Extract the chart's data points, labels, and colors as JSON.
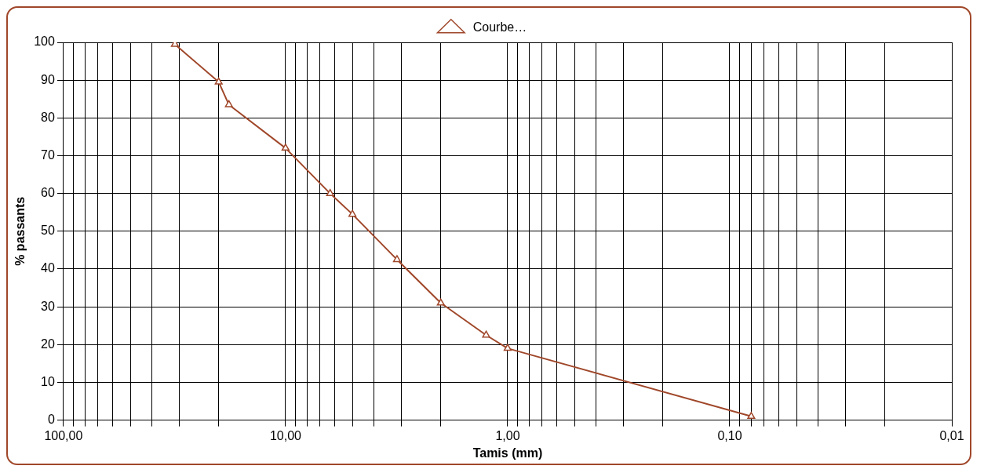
{
  "chart_data": {
    "type": "line",
    "xlabel": "Tamis (mm)",
    "ylabel": "% passants",
    "log": "x",
    "x": [
      31.5,
      20,
      18,
      10,
      6.3,
      5,
      3.15,
      2,
      1.25,
      1,
      0.08
    ],
    "series": [
      {
        "name": "Courbe…",
        "color": "#a0472a",
        "values": [
          99.5,
          89.5,
          83.5,
          72,
          60,
          54.5,
          42.5,
          31,
          22.5,
          19,
          1
        ]
      }
    ],
    "xlim": [
      100,
      0.01
    ],
    "xticks": [
      {
        "value": 100,
        "label": "100,00"
      },
      {
        "value": 90,
        "label": null
      },
      {
        "value": 80,
        "label": null
      },
      {
        "value": 70,
        "label": null
      },
      {
        "value": 60,
        "label": null
      },
      {
        "value": 50,
        "label": null
      },
      {
        "value": 40,
        "label": null
      },
      {
        "value": 30,
        "label": null
      },
      {
        "value": 20,
        "label": null
      },
      {
        "value": 10,
        "label": "10,00"
      },
      {
        "value": 9,
        "label": null
      },
      {
        "value": 8,
        "label": null
      },
      {
        "value": 7,
        "label": null
      },
      {
        "value": 6,
        "label": null
      },
      {
        "value": 5,
        "label": null
      },
      {
        "value": 4,
        "label": null
      },
      {
        "value": 3,
        "label": null
      },
      {
        "value": 2,
        "label": null
      },
      {
        "value": 1,
        "label": "1,00"
      },
      {
        "value": 0.9,
        "label": null
      },
      {
        "value": 0.8,
        "label": null
      },
      {
        "value": 0.7,
        "label": null
      },
      {
        "value": 0.6,
        "label": null
      },
      {
        "value": 0.5,
        "label": null
      },
      {
        "value": 0.4,
        "label": null
      },
      {
        "value": 0.3,
        "label": null
      },
      {
        "value": 0.2,
        "label": null
      },
      {
        "value": 0.1,
        "label": "0,10"
      },
      {
        "value": 0.09,
        "label": null
      },
      {
        "value": 0.08,
        "label": null
      },
      {
        "value": 0.07,
        "label": null
      },
      {
        "value": 0.06,
        "label": null
      },
      {
        "value": 0.05,
        "label": null
      },
      {
        "value": 0.04,
        "label": null
      },
      {
        "value": 0.03,
        "label": null
      },
      {
        "value": 0.02,
        "label": null
      },
      {
        "value": 0.01,
        "label": "0,01"
      }
    ],
    "ylim": [
      0,
      100
    ],
    "yticks": [
      0,
      10,
      20,
      30,
      40,
      50,
      60,
      70,
      80,
      90,
      100
    ],
    "grid": true,
    "legend": "top",
    "marker": "triangle",
    "line_style": "solid"
  }
}
